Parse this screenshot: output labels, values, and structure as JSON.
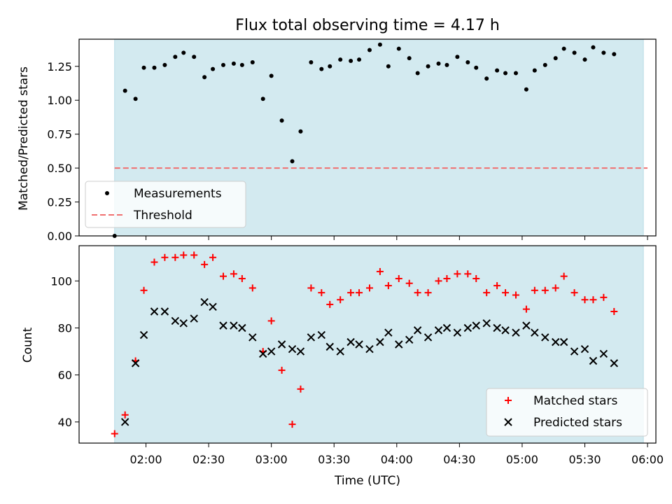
{
  "chart_data": [
    {
      "type": "scatter",
      "title": "Flux total observing time = 4.17 h",
      "xlabel": "",
      "ylabel": "Matched/Predicted stars",
      "ylim": [
        0,
        1.45
      ],
      "yticks": [
        0.0,
        0.25,
        0.5,
        0.75,
        1.0,
        1.25
      ],
      "yticklabels": [
        "0.00",
        "0.25",
        "0.50",
        "0.75",
        "1.00",
        "1.25"
      ],
      "xlim_minutes_utc": [
        88,
        364
      ],
      "shaded_span_minutes_utc": [
        105,
        358
      ],
      "shade_color": "#d3eaf0",
      "legend_placement": "lower-left",
      "series": [
        {
          "name": "Measurements",
          "marker": "dot",
          "color": "#000000",
          "points": [
            [
              "01:45",
              0.0
            ],
            [
              "01:50",
              1.07
            ],
            [
              "01:55",
              1.01
            ],
            [
              "01:59",
              1.24
            ],
            [
              "02:04",
              1.24
            ],
            [
              "02:09",
              1.26
            ],
            [
              "02:14",
              1.32
            ],
            [
              "02:18",
              1.35
            ],
            [
              "02:23",
              1.32
            ],
            [
              "02:28",
              1.17
            ],
            [
              "02:32",
              1.23
            ],
            [
              "02:37",
              1.26
            ],
            [
              "02:42",
              1.27
            ],
            [
              "02:46",
              1.26
            ],
            [
              "02:51",
              1.28
            ],
            [
              "02:56",
              1.01
            ],
            [
              "03:00",
              1.18
            ],
            [
              "03:05",
              0.85
            ],
            [
              "03:10",
              0.55
            ],
            [
              "03:14",
              0.77
            ],
            [
              "03:19",
              1.28
            ],
            [
              "03:24",
              1.23
            ],
            [
              "03:28",
              1.25
            ],
            [
              "03:33",
              1.3
            ],
            [
              "03:38",
              1.29
            ],
            [
              "03:42",
              1.3
            ],
            [
              "03:47",
              1.37
            ],
            [
              "03:52",
              1.41
            ],
            [
              "03:56",
              1.25
            ],
            [
              "04:01",
              1.38
            ],
            [
              "04:06",
              1.31
            ],
            [
              "04:10",
              1.2
            ],
            [
              "04:15",
              1.25
            ],
            [
              "04:20",
              1.27
            ],
            [
              "04:24",
              1.26
            ],
            [
              "04:29",
              1.32
            ],
            [
              "04:34",
              1.28
            ],
            [
              "04:38",
              1.24
            ],
            [
              "04:43",
              1.16
            ],
            [
              "04:48",
              1.22
            ],
            [
              "04:52",
              1.2
            ],
            [
              "04:57",
              1.2
            ],
            [
              "05:02",
              1.08
            ],
            [
              "05:06",
              1.22
            ],
            [
              "05:11",
              1.26
            ],
            [
              "05:16",
              1.31
            ],
            [
              "05:20",
              1.38
            ],
            [
              "05:25",
              1.35
            ],
            [
              "05:30",
              1.3
            ],
            [
              "05:34",
              1.39
            ],
            [
              "05:39",
              1.35
            ],
            [
              "05:44",
              1.34
            ]
          ]
        },
        {
          "name": "Threshold",
          "marker": "dashed-line",
          "color": "#f07070",
          "value": 0.5,
          "x_range": [
            "01:45",
            "06:00"
          ]
        }
      ]
    },
    {
      "type": "scatter",
      "title": "",
      "xlabel": "Time (UTC)",
      "ylabel": "Count",
      "ylim": [
        31,
        115
      ],
      "yticks": [
        40,
        60,
        80,
        100
      ],
      "yticklabels": [
        "40",
        "60",
        "80",
        "100"
      ],
      "xticks_minutes_utc": [
        120,
        150,
        180,
        210,
        240,
        270,
        300,
        330,
        360
      ],
      "xticklabels": [
        "02:00",
        "02:30",
        "03:00",
        "03:30",
        "04:00",
        "04:30",
        "05:00",
        "05:30",
        "06:00"
      ],
      "legend_placement": "lower-right",
      "series": [
        {
          "name": "Matched stars",
          "marker": "plus",
          "color": "#ff0000",
          "points": [
            [
              "01:45",
              35
            ],
            [
              "01:50",
              43
            ],
            [
              "01:55",
              66
            ],
            [
              "01:59",
              96
            ],
            [
              "02:04",
              108
            ],
            [
              "02:09",
              110
            ],
            [
              "02:14",
              110
            ],
            [
              "02:18",
              111
            ],
            [
              "02:23",
              111
            ],
            [
              "02:28",
              107
            ],
            [
              "02:32",
              110
            ],
            [
              "02:37",
              102
            ],
            [
              "02:42",
              103
            ],
            [
              "02:46",
              101
            ],
            [
              "02:51",
              97
            ],
            [
              "02:56",
              70
            ],
            [
              "03:00",
              83
            ],
            [
              "03:05",
              62
            ],
            [
              "03:10",
              39
            ],
            [
              "03:14",
              54
            ],
            [
              "03:19",
              97
            ],
            [
              "03:24",
              95
            ],
            [
              "03:28",
              90
            ],
            [
              "03:33",
              92
            ],
            [
              "03:38",
              95
            ],
            [
              "03:42",
              95
            ],
            [
              "03:47",
              97
            ],
            [
              "03:52",
              104
            ],
            [
              "03:56",
              98
            ],
            [
              "04:01",
              101
            ],
            [
              "04:06",
              99
            ],
            [
              "04:10",
              95
            ],
            [
              "04:15",
              95
            ],
            [
              "04:20",
              100
            ],
            [
              "04:24",
              101
            ],
            [
              "04:29",
              103
            ],
            [
              "04:34",
              103
            ],
            [
              "04:38",
              101
            ],
            [
              "04:43",
              95
            ],
            [
              "04:48",
              98
            ],
            [
              "04:52",
              95
            ],
            [
              "04:57",
              94
            ],
            [
              "05:02",
              88
            ],
            [
              "05:06",
              96
            ],
            [
              "05:11",
              96
            ],
            [
              "05:16",
              97
            ],
            [
              "05:20",
              102
            ],
            [
              "05:25",
              95
            ],
            [
              "05:30",
              92
            ],
            [
              "05:34",
              92
            ],
            [
              "05:39",
              93
            ],
            [
              "05:44",
              87
            ]
          ]
        },
        {
          "name": "Predicted stars",
          "marker": "x",
          "color": "#000000",
          "points": [
            [
              "01:50",
              40
            ],
            [
              "01:55",
              65
            ],
            [
              "01:59",
              77
            ],
            [
              "02:04",
              87
            ],
            [
              "02:09",
              87
            ],
            [
              "02:14",
              83
            ],
            [
              "02:18",
              82
            ],
            [
              "02:23",
              84
            ],
            [
              "02:28",
              91
            ],
            [
              "02:32",
              89
            ],
            [
              "02:37",
              81
            ],
            [
              "02:42",
              81
            ],
            [
              "02:46",
              80
            ],
            [
              "02:51",
              76
            ],
            [
              "02:56",
              69
            ],
            [
              "03:00",
              70
            ],
            [
              "03:05",
              73
            ],
            [
              "03:10",
              71
            ],
            [
              "03:14",
              70
            ],
            [
              "03:19",
              76
            ],
            [
              "03:24",
              77
            ],
            [
              "03:28",
              72
            ],
            [
              "03:33",
              70
            ],
            [
              "03:38",
              74
            ],
            [
              "03:42",
              73
            ],
            [
              "03:47",
              71
            ],
            [
              "03:52",
              74
            ],
            [
              "03:56",
              78
            ],
            [
              "04:01",
              73
            ],
            [
              "04:06",
              75
            ],
            [
              "04:10",
              79
            ],
            [
              "04:15",
              76
            ],
            [
              "04:20",
              79
            ],
            [
              "04:24",
              80
            ],
            [
              "04:29",
              78
            ],
            [
              "04:34",
              80
            ],
            [
              "04:38",
              81
            ],
            [
              "04:43",
              82
            ],
            [
              "04:48",
              80
            ],
            [
              "04:52",
              79
            ],
            [
              "04:57",
              78
            ],
            [
              "05:02",
              81
            ],
            [
              "05:06",
              78
            ],
            [
              "05:11",
              76
            ],
            [
              "05:16",
              74
            ],
            [
              "05:20",
              74
            ],
            [
              "05:25",
              70
            ],
            [
              "05:30",
              71
            ],
            [
              "05:34",
              66
            ],
            [
              "05:39",
              69
            ],
            [
              "05:44",
              65
            ]
          ]
        }
      ]
    }
  ]
}
